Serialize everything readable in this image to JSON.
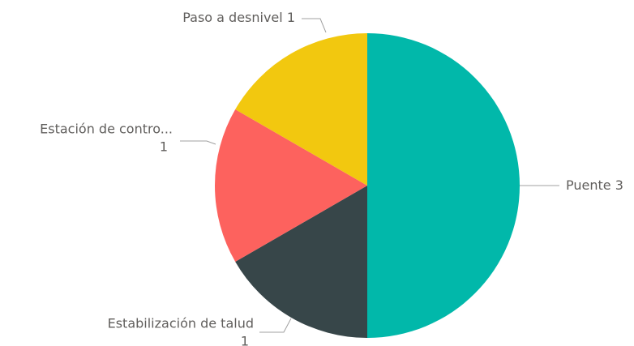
{
  "chart_data": {
    "type": "pie",
    "categories": [
      "Puente",
      "Estabilización de talud",
      "Estación de contro...",
      "Paso a desnivel"
    ],
    "values": [
      3,
      1,
      1,
      1
    ],
    "colors": [
      "#01B8AA",
      "#374649",
      "#FD625E",
      "#F2C80F"
    ]
  }
}
